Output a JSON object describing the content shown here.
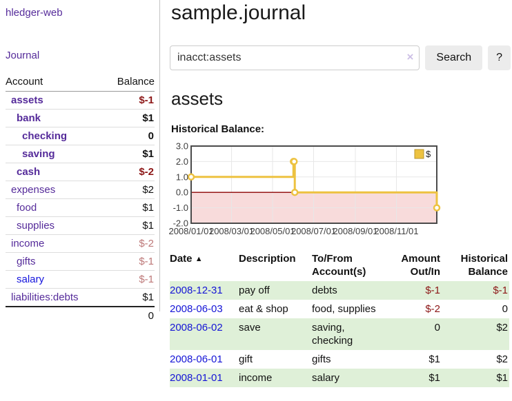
{
  "colors": {
    "link_purple": "#552b9a",
    "link_blue": "#1414dd",
    "negative_strong": "#8c1616",
    "negative_light": "#bd7878",
    "row_stripe_green": "#dff0d8",
    "chart_gold": "#edc240"
  },
  "sidebar": {
    "app_title": "hledger-web",
    "nav": {
      "journal_label": "Journal"
    },
    "accounts_table": {
      "headers": {
        "account": "Account",
        "balance": "Balance"
      },
      "rows": [
        {
          "name": "assets",
          "indent": 1,
          "bold": true,
          "balance": "$-1",
          "balance_style": "neg-strong",
          "link_color": "purple"
        },
        {
          "name": "bank",
          "indent": 2,
          "bold": true,
          "balance": "$1",
          "balance_style": "pos",
          "link_color": "purple"
        },
        {
          "name": "checking",
          "indent": 3,
          "bold": true,
          "balance": "0",
          "balance_style": "pos",
          "link_color": "purple"
        },
        {
          "name": "saving",
          "indent": 3,
          "bold": true,
          "balance": "$1",
          "balance_style": "pos",
          "link_color": "purple"
        },
        {
          "name": "cash",
          "indent": 2,
          "bold": true,
          "balance": "$-2",
          "balance_style": "neg-strong",
          "link_color": "purple"
        },
        {
          "name": "expenses",
          "indent": 1,
          "bold": false,
          "balance": "$2",
          "balance_style": "pos",
          "link_color": "purple"
        },
        {
          "name": "food",
          "indent": 2,
          "bold": false,
          "balance": "$1",
          "balance_style": "pos",
          "link_color": "purple"
        },
        {
          "name": "supplies",
          "indent": 2,
          "bold": false,
          "balance": "$1",
          "balance_style": "pos",
          "link_color": "purple"
        },
        {
          "name": "income",
          "indent": 1,
          "bold": false,
          "balance": "$-2",
          "balance_style": "neg-light",
          "link_color": "purple"
        },
        {
          "name": "gifts",
          "indent": 2,
          "bold": false,
          "balance": "$-1",
          "balance_style": "neg-light",
          "link_color": "purple"
        },
        {
          "name": "salary",
          "indent": 2,
          "bold": false,
          "balance": "$-1",
          "balance_style": "neg-light",
          "link_color": "blue"
        },
        {
          "name": "liabilities:debts",
          "indent": 1,
          "bold": false,
          "balance": "$1",
          "balance_style": "pos",
          "link_color": "purple"
        }
      ],
      "total": "0"
    }
  },
  "main": {
    "title": "sample.journal",
    "search": {
      "value": "inacct:assets",
      "clear_icon": "×",
      "button_label": "Search",
      "help_label": "?"
    },
    "account_heading": "assets",
    "chart_label": "Historical Balance:"
  },
  "chart_data": {
    "type": "line",
    "step": true,
    "title": "Historical Balance",
    "x_range": [
      "2008-01-01",
      "2008-12-31"
    ],
    "ylim": [
      -2,
      3
    ],
    "y_ticks": [
      {
        "label": "3.0",
        "value": 3
      },
      {
        "label": "2.0",
        "value": 2
      },
      {
        "label": "1.0",
        "value": 1
      },
      {
        "label": "0.0",
        "value": 0
      },
      {
        "label": "-1.0",
        "value": -1
      },
      {
        "label": "-2.0",
        "value": -2
      }
    ],
    "x_ticks": [
      {
        "label": "2008/01/01",
        "date": "2008-01-01"
      },
      {
        "label": "2008/03/01",
        "date": "2008-03-01"
      },
      {
        "label": "2008/05/01",
        "date": "2008-05-01"
      },
      {
        "label": "2008/07/01",
        "date": "2008-07-01"
      },
      {
        "label": "2008/09/01",
        "date": "2008-09-01"
      },
      {
        "label": "2008/11/01",
        "date": "2008-11-01"
      }
    ],
    "series": [
      {
        "name": "$",
        "color": "#edc240",
        "points": [
          [
            "2008-01-01",
            1
          ],
          [
            "2008-06-01",
            2
          ],
          [
            "2008-06-02",
            2
          ],
          [
            "2008-06-03",
            0
          ],
          [
            "2008-12-31",
            -1
          ]
        ]
      }
    ],
    "legend": {
      "position": "top-right",
      "label": "$"
    },
    "grid": true,
    "colors": {
      "grid": "#e7e7e7",
      "border": "#4a4a4a",
      "zero_line": "#8b0000",
      "below_zero_fill": "#f8dbdb",
      "marker_fill": "#ffffff",
      "tick_text": "#3d3d3d"
    }
  },
  "transactions": {
    "headers": {
      "date": "Date",
      "sort_icon": "▲",
      "description": "Description",
      "accounts": "To/From\nAccount(s)",
      "amount": "Amount\nOut/In",
      "balance": "Historical\nBalance"
    },
    "rows": [
      {
        "date": "2008-12-31",
        "description": "pay off",
        "accounts": "debts",
        "amount": "$-1",
        "amount_neg": true,
        "balance": "$-1",
        "balance_neg": true
      },
      {
        "date": "2008-06-03",
        "description": "eat & shop",
        "accounts": "food, supplies",
        "amount": "$-2",
        "amount_neg": true,
        "balance": "0",
        "balance_neg": false
      },
      {
        "date": "2008-06-02",
        "description": "save",
        "accounts": "saving, checking",
        "amount": "0",
        "amount_neg": false,
        "balance": "$2",
        "balance_neg": false
      },
      {
        "date": "2008-06-01",
        "description": "gift",
        "accounts": "gifts",
        "amount": "$1",
        "amount_neg": false,
        "balance": "$2",
        "balance_neg": false
      },
      {
        "date": "2008-01-01",
        "description": "income",
        "accounts": "salary",
        "amount": "$1",
        "amount_neg": false,
        "balance": "$1",
        "balance_neg": false
      }
    ]
  }
}
